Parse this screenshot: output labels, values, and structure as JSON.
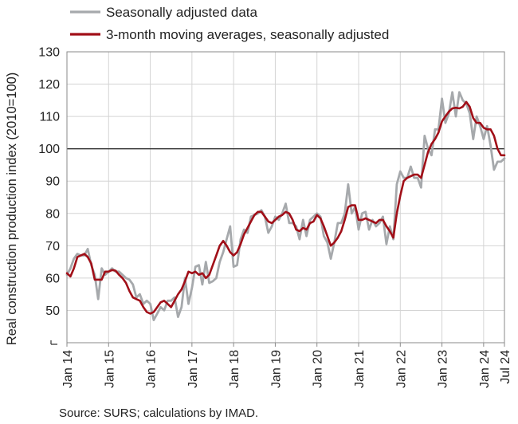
{
  "chart_data": {
    "type": "line",
    "ylabel": "Real construction production index (2010=100)",
    "ylim": [
      40,
      130
    ],
    "yticks": [
      "50",
      "60",
      "70",
      "80",
      "90",
      "100",
      "110",
      "120",
      "130"
    ],
    "xlim": [
      "2014-01",
      "2024-07"
    ],
    "xticks": [
      {
        "label": "Jan 14",
        "x": "2014-01"
      },
      {
        "label": "Jan 15",
        "x": "2015-01"
      },
      {
        "label": "Jan 16",
        "x": "2016-01"
      },
      {
        "label": "Jan 17",
        "x": "2017-01"
      },
      {
        "label": "Jan 18",
        "x": "2018-01"
      },
      {
        "label": "Jan 19",
        "x": "2019-01"
      },
      {
        "label": "Jan 20",
        "x": "2020-01"
      },
      {
        "label": "Jan 21",
        "x": "2021-01"
      },
      {
        "label": "Jan 22",
        "x": "2022-01"
      },
      {
        "label": "Jan 23",
        "x": "2023-01"
      },
      {
        "label": "Jan 24",
        "x": "2024-01"
      },
      {
        "label": "Jul 24",
        "x": "2024-07"
      }
    ],
    "reference_line": 100,
    "grid": true,
    "legend_position": "top",
    "series": [
      {
        "name": "Seasonally adjusted data",
        "color": "#a6a9ac",
        "values": [
          [
            "2014-01",
            61
          ],
          [
            "2014-02",
            63
          ],
          [
            "2014-03",
            66
          ],
          [
            "2014-04",
            67.5
          ],
          [
            "2014-05",
            67
          ],
          [
            "2014-06",
            67
          ],
          [
            "2014-07",
            69
          ],
          [
            "2014-08",
            64
          ],
          [
            "2014-09",
            61
          ],
          [
            "2014-10",
            53.5
          ],
          [
            "2014-11",
            63
          ],
          [
            "2014-12",
            61
          ],
          [
            "2015-01",
            62
          ],
          [
            "2015-02",
            63
          ],
          [
            "2015-03",
            62
          ],
          [
            "2015-04",
            62
          ],
          [
            "2015-05",
            61
          ],
          [
            "2015-06",
            60
          ],
          [
            "2015-07",
            59.5
          ],
          [
            "2015-08",
            58
          ],
          [
            "2015-09",
            54
          ],
          [
            "2015-10",
            55
          ],
          [
            "2015-11",
            52
          ],
          [
            "2015-12",
            53
          ],
          [
            "2016-01",
            52
          ],
          [
            "2016-02",
            47
          ],
          [
            "2016-03",
            49
          ],
          [
            "2016-04",
            51
          ],
          [
            "2016-05",
            50
          ],
          [
            "2016-06",
            53
          ],
          [
            "2016-07",
            53
          ],
          [
            "2016-08",
            54
          ],
          [
            "2016-09",
            48
          ],
          [
            "2016-10",
            51
          ],
          [
            "2016-11",
            60
          ],
          [
            "2016-12",
            52
          ],
          [
            "2017-01",
            57
          ],
          [
            "2017-02",
            63.5
          ],
          [
            "2017-03",
            64
          ],
          [
            "2017-04",
            58
          ],
          [
            "2017-05",
            65
          ],
          [
            "2017-06",
            58.5
          ],
          [
            "2017-07",
            59
          ],
          [
            "2017-08",
            60
          ],
          [
            "2017-09",
            65
          ],
          [
            "2017-10",
            68
          ],
          [
            "2017-11",
            72
          ],
          [
            "2017-12",
            76
          ],
          [
            "2018-01",
            63.5
          ],
          [
            "2018-02",
            64
          ],
          [
            "2018-03",
            72
          ],
          [
            "2018-04",
            75
          ],
          [
            "2018-05",
            74
          ],
          [
            "2018-06",
            79
          ],
          [
            "2018-07",
            79.5
          ],
          [
            "2018-08",
            80
          ],
          [
            "2018-09",
            81
          ],
          [
            "2018-10",
            79
          ],
          [
            "2018-11",
            74
          ],
          [
            "2018-12",
            76
          ],
          [
            "2019-01",
            79
          ],
          [
            "2019-02",
            78
          ],
          [
            "2019-03",
            80
          ],
          [
            "2019-04",
            83
          ],
          [
            "2019-05",
            77
          ],
          [
            "2019-06",
            77
          ],
          [
            "2019-07",
            76
          ],
          [
            "2019-08",
            72
          ],
          [
            "2019-09",
            78
          ],
          [
            "2019-10",
            73
          ],
          [
            "2019-11",
            78
          ],
          [
            "2019-12",
            79
          ],
          [
            "2020-01",
            80
          ],
          [
            "2020-02",
            79
          ],
          [
            "2020-03",
            73
          ],
          [
            "2020-04",
            71
          ],
          [
            "2020-05",
            66
          ],
          [
            "2020-06",
            71
          ],
          [
            "2020-07",
            77
          ],
          [
            "2020-08",
            77
          ],
          [
            "2020-09",
            80
          ],
          [
            "2020-10",
            89
          ],
          [
            "2020-11",
            80
          ],
          [
            "2020-12",
            82
          ],
          [
            "2021-01",
            75
          ],
          [
            "2021-02",
            80
          ],
          [
            "2021-03",
            80.5
          ],
          [
            "2021-04",
            75
          ],
          [
            "2021-05",
            78
          ],
          [
            "2021-06",
            76
          ],
          [
            "2021-07",
            77
          ],
          [
            "2021-08",
            79
          ],
          [
            "2021-09",
            70.5
          ],
          [
            "2021-10",
            76
          ],
          [
            "2021-11",
            72
          ],
          [
            "2021-12",
            89
          ],
          [
            "2022-01",
            93
          ],
          [
            "2022-02",
            91
          ],
          [
            "2022-03",
            91
          ],
          [
            "2022-04",
            94.5
          ],
          [
            "2022-05",
            91
          ],
          [
            "2022-06",
            91
          ],
          [
            "2022-07",
            88
          ],
          [
            "2022-08",
            104
          ],
          [
            "2022-09",
            100
          ],
          [
            "2022-10",
            98
          ],
          [
            "2022-11",
            106
          ],
          [
            "2022-12",
            106
          ],
          [
            "2023-01",
            115.5
          ],
          [
            "2023-02",
            108
          ],
          [
            "2023-03",
            111
          ],
          [
            "2023-04",
            117.5
          ],
          [
            "2023-05",
            110
          ],
          [
            "2023-06",
            117.5
          ],
          [
            "2023-07",
            115
          ],
          [
            "2023-08",
            114
          ],
          [
            "2023-09",
            111
          ],
          [
            "2023-10",
            103
          ],
          [
            "2023-11",
            110
          ],
          [
            "2023-12",
            107
          ],
          [
            "2024-01",
            103
          ],
          [
            "2024-02",
            107
          ],
          [
            "2024-03",
            101
          ],
          [
            "2024-04",
            93.5
          ],
          [
            "2024-05",
            96
          ],
          [
            "2024-06",
            96
          ],
          [
            "2024-07",
            97
          ]
        ]
      },
      {
        "name": "3-month moving averages, seasonally adjusted",
        "color": "#a10f18",
        "values": [
          [
            "2014-01",
            61.5
          ],
          [
            "2014-02",
            60.5
          ],
          [
            "2014-03",
            63
          ],
          [
            "2014-04",
            66.5
          ],
          [
            "2014-05",
            67
          ],
          [
            "2014-06",
            67.5
          ],
          [
            "2014-07",
            66.5
          ],
          [
            "2014-08",
            64.5
          ],
          [
            "2014-09",
            59.5
          ],
          [
            "2014-10",
            59.5
          ],
          [
            "2014-11",
            59.5
          ],
          [
            "2014-12",
            62
          ],
          [
            "2015-01",
            62
          ],
          [
            "2015-02",
            62.5
          ],
          [
            "2015-03",
            62.3
          ],
          [
            "2015-04",
            61
          ],
          [
            "2015-05",
            60
          ],
          [
            "2015-06",
            58.5
          ],
          [
            "2015-07",
            56
          ],
          [
            "2015-08",
            54
          ],
          [
            "2015-09",
            53.5
          ],
          [
            "2015-10",
            53
          ],
          [
            "2015-11",
            51
          ],
          [
            "2015-12",
            49.5
          ],
          [
            "2016-01",
            49
          ],
          [
            "2016-02",
            49.5
          ],
          [
            "2016-03",
            51
          ],
          [
            "2016-04",
            52.5
          ],
          [
            "2016-05",
            53
          ],
          [
            "2016-06",
            52
          ],
          [
            "2016-07",
            51
          ],
          [
            "2016-08",
            53
          ],
          [
            "2016-09",
            55
          ],
          [
            "2016-10",
            56.5
          ],
          [
            "2016-11",
            59
          ],
          [
            "2016-12",
            62
          ],
          [
            "2017-01",
            61.5
          ],
          [
            "2017-02",
            62
          ],
          [
            "2017-03",
            61
          ],
          [
            "2017-04",
            61.5
          ],
          [
            "2017-05",
            60
          ],
          [
            "2017-06",
            61
          ],
          [
            "2017-07",
            64
          ],
          [
            "2017-08",
            67
          ],
          [
            "2017-09",
            70
          ],
          [
            "2017-10",
            71.5
          ],
          [
            "2017-11",
            70
          ],
          [
            "2017-12",
            68
          ],
          [
            "2018-01",
            67
          ],
          [
            "2018-02",
            68
          ],
          [
            "2018-03",
            70.5
          ],
          [
            "2018-04",
            73.5
          ],
          [
            "2018-05",
            75.5
          ],
          [
            "2018-06",
            77.5
          ],
          [
            "2018-07",
            79.5
          ],
          [
            "2018-08",
            80.5
          ],
          [
            "2018-09",
            80.5
          ],
          [
            "2018-10",
            79
          ],
          [
            "2018-11",
            77.5
          ],
          [
            "2018-12",
            77
          ],
          [
            "2019-01",
            78
          ],
          [
            "2019-02",
            79
          ],
          [
            "2019-03",
            79.5
          ],
          [
            "2019-04",
            80.5
          ],
          [
            "2019-05",
            80
          ],
          [
            "2019-06",
            78
          ],
          [
            "2019-07",
            75
          ],
          [
            "2019-08",
            74.5
          ],
          [
            "2019-09",
            75.5
          ],
          [
            "2019-10",
            75
          ],
          [
            "2019-11",
            77
          ],
          [
            "2019-12",
            77.5
          ],
          [
            "2020-01",
            79.5
          ],
          [
            "2020-02",
            78.5
          ],
          [
            "2020-03",
            76
          ],
          [
            "2020-04",
            73
          ],
          [
            "2020-05",
            70
          ],
          [
            "2020-06",
            71
          ],
          [
            "2020-07",
            72.5
          ],
          [
            "2020-08",
            74.5
          ],
          [
            "2020-09",
            78
          ],
          [
            "2020-10",
            82
          ],
          [
            "2020-11",
            82.5
          ],
          [
            "2020-12",
            82.5
          ],
          [
            "2021-01",
            78
          ],
          [
            "2021-02",
            78
          ],
          [
            "2021-03",
            78.5
          ],
          [
            "2021-04",
            78
          ],
          [
            "2021-05",
            77.5
          ],
          [
            "2021-06",
            77
          ],
          [
            "2021-07",
            78
          ],
          [
            "2021-08",
            78
          ],
          [
            "2021-09",
            76
          ],
          [
            "2021-10",
            74.5
          ],
          [
            "2021-11",
            72.5
          ],
          [
            "2021-12",
            80
          ],
          [
            "2022-01",
            85.5
          ],
          [
            "2022-02",
            90
          ],
          [
            "2022-03",
            91
          ],
          [
            "2022-04",
            91.5
          ],
          [
            "2022-05",
            92
          ],
          [
            "2022-06",
            92
          ],
          [
            "2022-07",
            91
          ],
          [
            "2022-08",
            95
          ],
          [
            "2022-09",
            99
          ],
          [
            "2022-10",
            101.5
          ],
          [
            "2022-11",
            103
          ],
          [
            "2022-12",
            105
          ],
          [
            "2023-01",
            108.5
          ],
          [
            "2023-02",
            110
          ],
          [
            "2023-03",
            111.5
          ],
          [
            "2023-04",
            112.5
          ],
          [
            "2023-05",
            112.7
          ],
          [
            "2023-06",
            112.5
          ],
          [
            "2023-07",
            113
          ],
          [
            "2023-08",
            114.5
          ],
          [
            "2023-09",
            113
          ],
          [
            "2023-10",
            109.5
          ],
          [
            "2023-11",
            108
          ],
          [
            "2023-12",
            108
          ],
          [
            "2024-01",
            106.5
          ],
          [
            "2024-02",
            106
          ],
          [
            "2024-03",
            106
          ],
          [
            "2024-04",
            104
          ],
          [
            "2024-05",
            100
          ],
          [
            "2024-06",
            98
          ],
          [
            "2024-07",
            98
          ]
        ]
      }
    ]
  },
  "source": "Source: SURS; calculations by IMAD."
}
